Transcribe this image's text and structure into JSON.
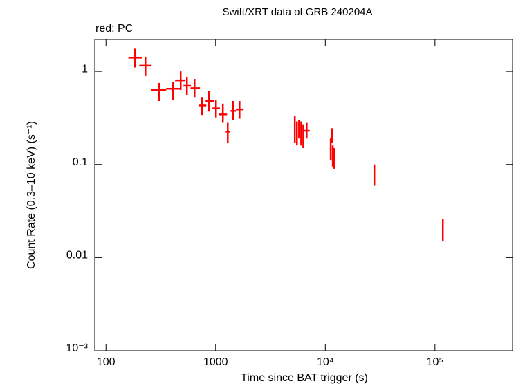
{
  "chart_data": {
    "type": "scatter",
    "title": "Swift/XRT data of GRB 240204A",
    "annotation": "red: PC",
    "x_label": "Time since BAT trigger (s)",
    "y_label": "Count Rate (0.3–10 keV) (s⁻¹)",
    "x_scale": "log",
    "y_scale": "log",
    "xlim": [
      79,
      510000
    ],
    "ylim": [
      0.001,
      2.2
    ],
    "xticks": [
      100,
      1000,
      {
        "value": 10000,
        "label": "10⁴"
      },
      {
        "value": 100000,
        "label": "10⁵"
      }
    ],
    "yticks": [
      {
        "value": 0.001,
        "label": "10⁻³"
      },
      0.01,
      0.1,
      1
    ],
    "series": [
      {
        "color": "#ff0000",
        "x": [
          184,
          229,
          306,
          409,
          480,
          547,
          642,
          753,
          871,
          1007,
          1164,
          1290,
          1448,
          1652,
          5270,
          5510,
          5760,
          6020,
          6290,
          6760,
          11200,
          11500,
          11700,
          12000,
          28000,
          118000
        ],
        "x_low": [
          160,
          201,
          257,
          354,
          427,
          509,
          590,
          700,
          810,
          935,
          1067,
          1236,
          1370,
          1530,
          5200,
          5430,
          5680,
          5940,
          6200,
          6350,
          11000,
          11300,
          11500,
          11800,
          27700,
          117000
        ],
        "x_high": [
          213,
          261,
          354,
          473,
          531,
          596,
          720,
          822,
          964,
          1096,
          1270,
          1349,
          1530,
          1800,
          5350,
          5590,
          5840,
          6100,
          6380,
          7200,
          11400,
          11700,
          11900,
          12200,
          28300,
          119000
        ],
        "y": [
          1.4,
          1.15,
          0.63,
          0.65,
          0.8,
          0.7,
          0.66,
          0.43,
          0.48,
          0.4,
          0.345,
          0.225,
          0.376,
          0.39,
          0.23,
          0.22,
          0.245,
          0.23,
          0.21,
          0.23,
          0.146,
          0.2,
          0.123,
          0.117,
          0.08,
          0.0203
        ],
        "y_low": [
          1.1,
          0.89,
          0.48,
          0.49,
          0.63,
          0.55,
          0.53,
          0.34,
          0.37,
          0.32,
          0.28,
          0.17,
          0.3,
          0.31,
          0.17,
          0.16,
          0.19,
          0.16,
          0.15,
          0.19,
          0.11,
          0.17,
          0.095,
          0.09,
          0.059,
          0.0149
        ],
        "y_high": [
          1.75,
          1.41,
          0.75,
          0.77,
          1.0,
          0.87,
          0.83,
          0.53,
          0.62,
          0.49,
          0.45,
          0.28,
          0.48,
          0.48,
          0.33,
          0.29,
          0.3,
          0.29,
          0.27,
          0.28,
          0.19,
          0.245,
          0.16,
          0.15,
          0.1,
          0.026
        ]
      }
    ]
  }
}
